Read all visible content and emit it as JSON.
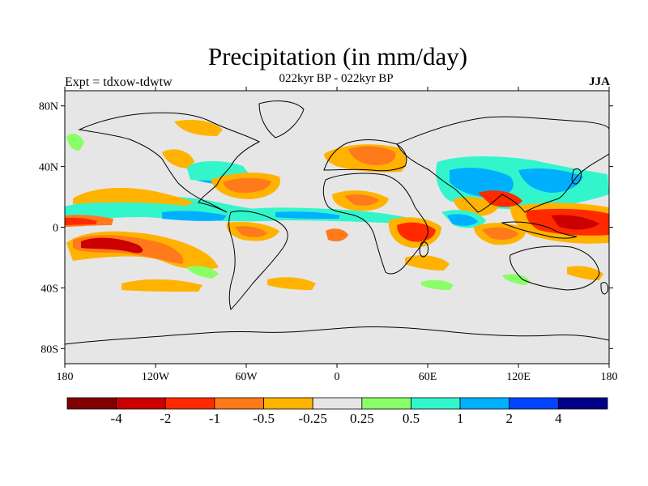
{
  "title": "Precipitation (in mm/day)",
  "subtitle": "022kyr BP - 022kyr BP",
  "left_label": "Expt = tdxow-tdwtw",
  "right_label": "JJA",
  "latitude_ticks": [
    "80N",
    "40N",
    "0",
    "40S",
    "80S"
  ],
  "longitude_ticks": [
    "180",
    "120W",
    "60W",
    "0",
    "60E",
    "120E",
    "180"
  ],
  "colorbar": {
    "colors": [
      "#800000",
      "#cc0000",
      "#ff2a00",
      "#ff7a1a",
      "#ffb300",
      "#e6e6e6",
      "#88ff66",
      "#33f5cc",
      "#00b0ff",
      "#0044ff",
      "#000088"
    ],
    "labels": [
      "-4",
      "-2",
      "-1",
      "-0.5",
      "-0.25",
      "0.25",
      "0.5",
      "1",
      "2",
      "4"
    ]
  },
  "map_background": "#e6e6e6"
}
